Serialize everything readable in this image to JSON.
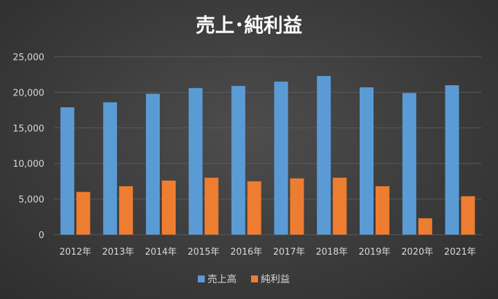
{
  "chart_data": {
    "type": "bar",
    "title": "売上･純利益",
    "categories": [
      "2012年",
      "2013年",
      "2014年",
      "2015年",
      "2016年",
      "2017年",
      "2018年",
      "2019年",
      "2020年",
      "2021年"
    ],
    "series": [
      {
        "name": "売上高",
        "color": "#5b9bd5",
        "values": [
          17900,
          18600,
          19800,
          20600,
          20900,
          21500,
          22300,
          20700,
          19900,
          21000
        ]
      },
      {
        "name": "純利益",
        "color": "#ed7d31",
        "values": [
          6000,
          6800,
          7600,
          8000,
          7500,
          7900,
          8000,
          6800,
          2300,
          5400
        ]
      }
    ],
    "ylim": [
      0,
      25000
    ],
    "yticks": [
      "0",
      "5,000",
      "10,000",
      "15,000",
      "20,000",
      "25,000"
    ],
    "ytick_values": [
      0,
      5000,
      10000,
      15000,
      20000,
      25000
    ],
    "grid": true,
    "legend_position": "bottom"
  }
}
